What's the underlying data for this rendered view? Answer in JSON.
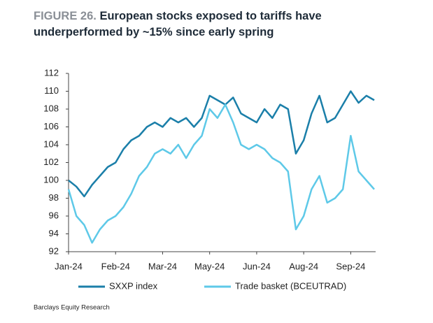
{
  "chart_data": {
    "type": "line",
    "title_label": "FIGURE 26.",
    "title": "European stocks exposed to tariffs have  underperformed by ~15% since early spring",
    "source": "Barclays Equity Research",
    "categories": [
      "Jan-24",
      null,
      null,
      null,
      null,
      null,
      "Feb-24",
      null,
      null,
      null,
      null,
      null,
      "Mar-24",
      null,
      null,
      null,
      null,
      null,
      "May-24",
      null,
      null,
      null,
      null,
      null,
      "Jun-24",
      null,
      null,
      null,
      null,
      null,
      "Aug-24",
      null,
      null,
      null,
      null,
      null,
      "Sep-24",
      null,
      null,
      null
    ],
    "series": [
      {
        "name": "SXXP index",
        "color": "#1b7fa9",
        "values": [
          100,
          99.3,
          98.2,
          99.5,
          100.5,
          101.5,
          102,
          103.5,
          104.5,
          105,
          106,
          106.5,
          106,
          107,
          106.5,
          107,
          106,
          107,
          109.5,
          109,
          108.5,
          109.3,
          107.5,
          107,
          106.5,
          108,
          107,
          108.5,
          108,
          103,
          104.5,
          107.5,
          109.5,
          106.5,
          107,
          108.5,
          110,
          108.7,
          109.5,
          109
        ]
      },
      {
        "name": "Trade basket (BCEUTRAD)",
        "color": "#5ec9e8",
        "values": [
          99,
          96,
          95,
          93,
          94.5,
          95.5,
          96,
          97,
          98.5,
          100.5,
          101.5,
          103,
          103.5,
          103,
          104,
          102.5,
          104,
          105,
          108,
          107,
          108.5,
          106.5,
          104,
          103.5,
          104,
          103.5,
          102.5,
          102,
          101,
          94.5,
          96,
          99,
          100.5,
          97.5,
          98,
          99,
          105,
          101,
          100,
          99
        ]
      }
    ],
    "ylim": [
      92,
      112
    ],
    "yticks": [
      92,
      94,
      96,
      98,
      100,
      102,
      104,
      106,
      108,
      110,
      112
    ]
  }
}
